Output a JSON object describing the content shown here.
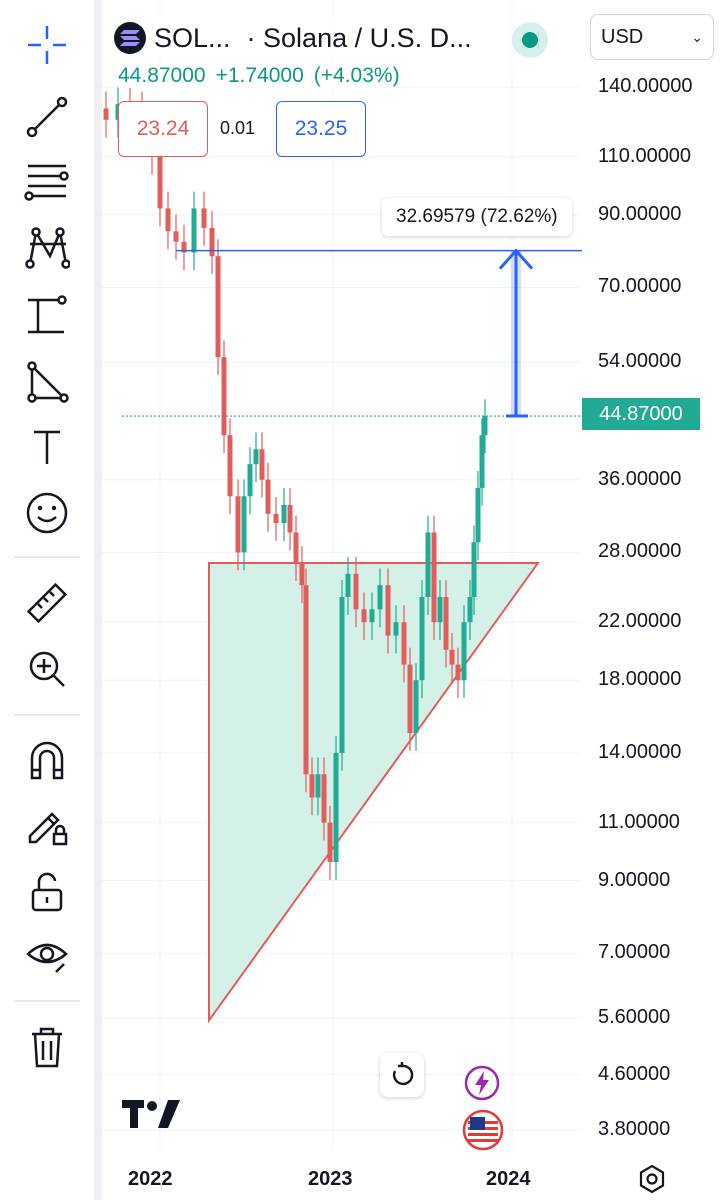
{
  "symbol": {
    "ticker": "SOL...",
    "name": "· Solana / U.S. D...",
    "price": "44.87000",
    "change": "+1.74000",
    "change_pct": "(+4.03%)",
    "sell": "23.24",
    "spread": "0.01",
    "buy": "23.25"
  },
  "currency": {
    "label": "USD"
  },
  "measure": {
    "label": "32.69579 (72.62%)"
  },
  "last_price_tag": "44.87000",
  "price_axis": {
    "ticks": [
      "140.00000",
      "110.00000",
      "90.00000",
      "70.00000",
      "54.00000",
      "36.00000",
      "28.00000",
      "22.00000",
      "18.00000",
      "14.00000",
      "11.00000",
      "9.00000",
      "7.00000",
      "5.60000",
      "4.60000",
      "3.80000"
    ]
  },
  "time_axis": {
    "ticks": [
      "2022",
      "2023",
      "2024"
    ]
  },
  "toolbar": {
    "tools": [
      "crosshair-icon",
      "trend-line-icon",
      "fib-retracement-icon",
      "pattern-icon",
      "measure-projection-icon",
      "triangle-icon",
      "text-icon",
      "emoji-icon",
      "ruler-icon",
      "zoom-in-icon",
      "magnet-icon",
      "lock-drawing-icon",
      "unlock-icon",
      "eye-icon",
      "trash-icon"
    ]
  },
  "colors": {
    "up": "#22ab94",
    "down": "#e25c5c",
    "accent": "#2962ff",
    "triangle_fill": "#cdeee4"
  }
}
